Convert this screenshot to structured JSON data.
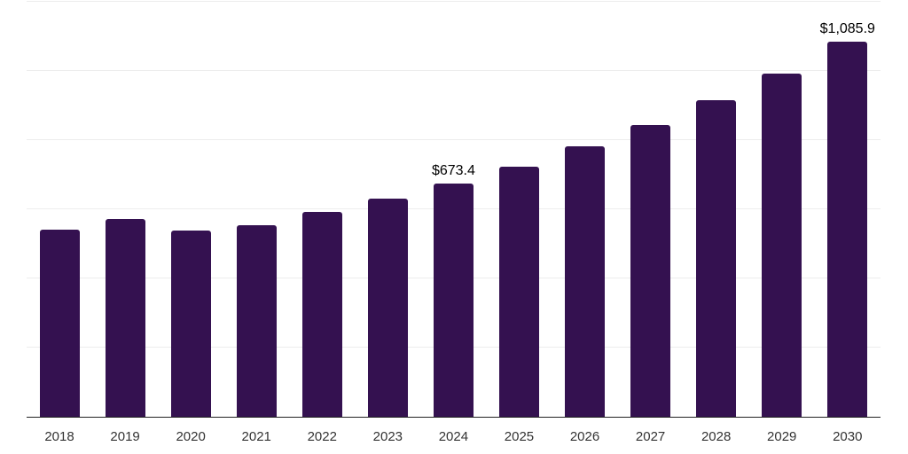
{
  "chart_data": {
    "type": "bar",
    "title": "",
    "xlabel": "",
    "ylabel": "",
    "categories": [
      "2018",
      "2019",
      "2020",
      "2021",
      "2022",
      "2023",
      "2024",
      "2025",
      "2026",
      "2027",
      "2028",
      "2029",
      "2030"
    ],
    "values": [
      542,
      572,
      539,
      555,
      592,
      631,
      673.4,
      724,
      782,
      844,
      916,
      993,
      1085.9
    ],
    "bar_labels": [
      "",
      "",
      "",
      "",
      "",
      "",
      "$673.4",
      "",
      "",
      "",
      "",
      "",
      "$1,085.9"
    ],
    "ylim": [
      0,
      1200
    ],
    "gridline_step": 200,
    "grid": true,
    "legend_position": "none",
    "y_axis_labels_visible": false,
    "colors": {
      "bar": "#341150",
      "axis_line": "#222222",
      "gridline": "#ededed",
      "tick_label": "#333333",
      "data_label": "#000000",
      "background": "#ffffff"
    }
  }
}
